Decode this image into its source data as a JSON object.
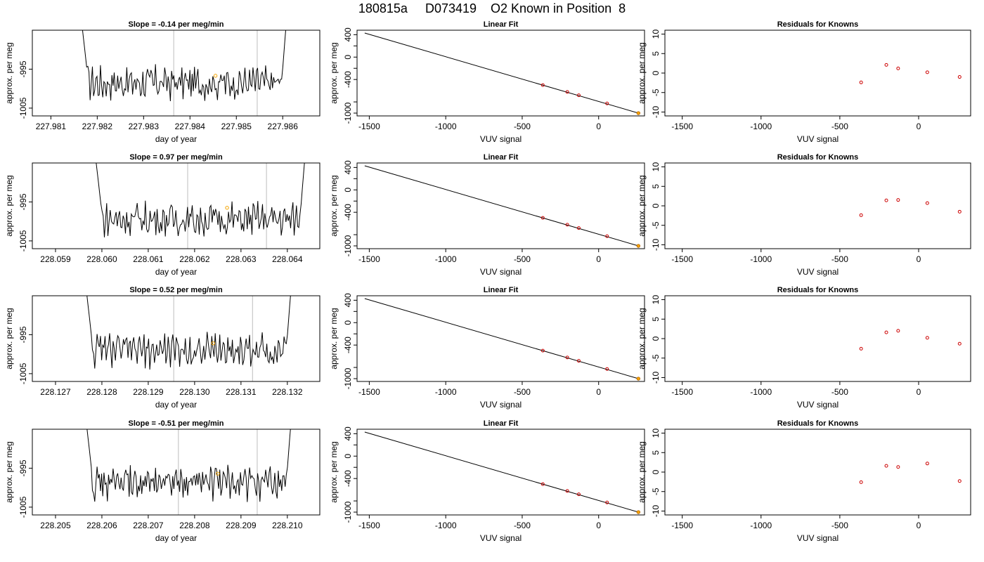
{
  "figure": {
    "title": "180815a     D073419    O2 Known in Position  8"
  },
  "chart_data": [
    {
      "type": "line",
      "panel": "timeseries",
      "row": 1,
      "title": "Slope =  -0.14  per meg/min",
      "xlabel": "day of year",
      "ylabel": "approx. per meg",
      "xlim": [
        227.9806,
        227.9868
      ],
      "ylim": [
        -1007,
        -985
      ],
      "xticks": [
        "227.981",
        "227.982",
        "227.983",
        "227.984",
        "227.985",
        "227.986"
      ],
      "xtick_values": [
        227.981,
        227.982,
        227.983,
        227.984,
        227.985,
        227.986
      ],
      "yticks": [
        "-1005",
        "-995"
      ],
      "ytick_values": [
        -1005,
        -995
      ],
      "x_start": 227.9815,
      "x_end": 227.9862,
      "baseline": -998.5,
      "vlines": [
        227.98365,
        227.98545
      ],
      "marker": {
        "x": 227.98455,
        "y": -996.7,
        "color": "#f4a300"
      },
      "trace_color": "#000000",
      "vline_color": "#c8c8c8"
    },
    {
      "type": "line",
      "panel": "linear-fit",
      "row": 1,
      "title": "Linear Fit",
      "xlabel": "VUV signal",
      "ylabel": "approx. per meg",
      "xlim": [
        -1580,
        300
      ],
      "ylim": [
        -1050,
        480
      ],
      "xticks": [
        "-1500",
        "-1000",
        "-500",
        "0"
      ],
      "xtick_values": [
        -1500,
        -1000,
        -500,
        0
      ],
      "yticks": [
        "400",
        "0",
        "-400",
        "-1000"
      ],
      "ytick_values": [
        400,
        0,
        -400,
        -1000
      ],
      "line": {
        "x": [
          -1530,
          260
        ],
        "y": [
          430,
          -1000
        ]
      },
      "points": {
        "x": [
          -365,
          -205,
          -130,
          55
        ],
        "y": [
          -500,
          -622,
          -682,
          -827
        ],
        "color": "#cc0000"
      },
      "highlight": {
        "x": [
          260
        ],
        "y": [
          -1000
        ],
        "color": "#f4a300"
      }
    },
    {
      "type": "scatter",
      "panel": "residuals",
      "row": 1,
      "title": "Residuals for Knowns",
      "xlabel": "VUV signal",
      "ylabel": "approx. per meg",
      "xlim": [
        -1610,
        330
      ],
      "ylim": [
        -11,
        11
      ],
      "xticks": [
        "-1500",
        "-1000",
        "-500",
        "0"
      ],
      "xtick_values": [
        -1500,
        -1000,
        -500,
        0
      ],
      "yticks": [
        "10",
        "5",
        "0",
        "-5",
        "-10"
      ],
      "ytick_values": [
        10,
        5,
        0,
        -5,
        -10
      ],
      "points": {
        "x": [
          -365,
          -205,
          -130,
          55,
          260
        ],
        "y": [
          -2.4,
          2.1,
          1.2,
          0.2,
          -1.0
        ],
        "color": "#cc0000"
      }
    },
    {
      "type": "line",
      "panel": "timeseries",
      "row": 2,
      "title": "Slope =  0.97  per meg/min",
      "xlabel": "day of year",
      "ylabel": "approx. per meg",
      "xlim": [
        228.0585,
        228.0647
      ],
      "ylim": [
        -1007,
        -985
      ],
      "xticks": [
        "228.059",
        "228.060",
        "228.061",
        "228.062",
        "228.063",
        "228.064"
      ],
      "xtick_values": [
        228.059,
        228.06,
        228.061,
        228.062,
        228.063,
        228.064
      ],
      "yticks": [
        "-1005",
        "-995"
      ],
      "ytick_values": [
        -1005,
        -995
      ],
      "x_start": 228.0597,
      "x_end": 228.0645,
      "baseline": -999.5,
      "vlines": [
        228.06185,
        228.06355
      ],
      "marker": {
        "x": 228.0627,
        "y": -996.5,
        "color": "#f4a300"
      },
      "trace_color": "#000000",
      "vline_color": "#c8c8c8"
    },
    {
      "type": "line",
      "panel": "linear-fit",
      "row": 2,
      "title": "Linear Fit",
      "xlabel": "VUV signal",
      "ylabel": "approx. per meg",
      "xlim": [
        -1580,
        300
      ],
      "ylim": [
        -1050,
        480
      ],
      "xticks": [
        "-1500",
        "-1000",
        "-500",
        "0"
      ],
      "xtick_values": [
        -1500,
        -1000,
        -500,
        0
      ],
      "yticks": [
        "400",
        "0",
        "-400",
        "-1000"
      ],
      "ytick_values": [
        400,
        0,
        -400,
        -1000
      ],
      "line": {
        "x": [
          -1530,
          260
        ],
        "y": [
          430,
          -1000
        ]
      },
      "points": {
        "x": [
          -365,
          -205,
          -130,
          55
        ],
        "y": [
          -500,
          -622,
          -682,
          -827
        ],
        "color": "#cc0000"
      },
      "highlight": {
        "x": [
          260
        ],
        "y": [
          -1000
        ],
        "color": "#f4a300"
      }
    },
    {
      "type": "scatter",
      "panel": "residuals",
      "row": 2,
      "title": "Residuals for Knowns",
      "xlabel": "VUV signal",
      "ylabel": "approx. per meg",
      "xlim": [
        -1610,
        330
      ],
      "ylim": [
        -11,
        11
      ],
      "xticks": [
        "-1500",
        "-1000",
        "-500",
        "0"
      ],
      "xtick_values": [
        -1500,
        -1000,
        -500,
        0
      ],
      "yticks": [
        "10",
        "5",
        "0",
        "-5",
        "-10"
      ],
      "ytick_values": [
        10,
        5,
        0,
        -5,
        -10
      ],
      "points": {
        "x": [
          -365,
          -205,
          -130,
          55,
          260
        ],
        "y": [
          -2.4,
          1.4,
          1.5,
          0.7,
          -1.5
        ],
        "color": "#cc0000"
      }
    },
    {
      "type": "line",
      "panel": "timeseries",
      "row": 3,
      "title": "Slope =  0.52  per meg/min",
      "xlabel": "day of year",
      "ylabel": "approx. per meg",
      "xlim": [
        228.1265,
        228.1327
      ],
      "ylim": [
        -1007,
        -985
      ],
      "xticks": [
        "228.127",
        "228.128",
        "228.129",
        "228.130",
        "228.131",
        "228.132"
      ],
      "xtick_values": [
        228.127,
        228.128,
        228.129,
        228.13,
        228.131,
        228.132
      ],
      "yticks": [
        "-1005",
        "-995"
      ],
      "ytick_values": [
        -1005,
        -995
      ],
      "x_start": 228.1275,
      "x_end": 228.1322,
      "baseline": -999,
      "vlines": [
        228.12955,
        228.13125
      ],
      "marker": {
        "x": 228.1304,
        "y": -997.2,
        "color": "#f4a300"
      },
      "trace_color": "#000000",
      "vline_color": "#c8c8c8"
    },
    {
      "type": "line",
      "panel": "linear-fit",
      "row": 3,
      "title": "Linear Fit",
      "xlabel": "VUV signal",
      "ylabel": "approx. per meg",
      "xlim": [
        -1580,
        300
      ],
      "ylim": [
        -1050,
        480
      ],
      "xticks": [
        "-1500",
        "-1000",
        "-500",
        "0"
      ],
      "xtick_values": [
        -1500,
        -1000,
        -500,
        0
      ],
      "yticks": [
        "400",
        "0",
        "-400",
        "-1000"
      ],
      "ytick_values": [
        400,
        0,
        -400,
        -1000
      ],
      "line": {
        "x": [
          -1530,
          260
        ],
        "y": [
          430,
          -1000
        ]
      },
      "points": {
        "x": [
          -365,
          -205,
          -130,
          55
        ],
        "y": [
          -500,
          -622,
          -682,
          -827
        ],
        "color": "#cc0000"
      },
      "highlight": {
        "x": [
          260
        ],
        "y": [
          -1000
        ],
        "color": "#f4a300"
      }
    },
    {
      "type": "scatter",
      "panel": "residuals",
      "row": 3,
      "title": "Residuals for Knowns",
      "xlabel": "VUV signal",
      "ylabel": "approx. per meg",
      "xlim": [
        -1610,
        330
      ],
      "ylim": [
        -11,
        11
      ],
      "xticks": [
        "-1500",
        "-1000",
        "-500",
        "0"
      ],
      "xtick_values": [
        -1500,
        -1000,
        -500,
        0
      ],
      "yticks": [
        "10",
        "5",
        "0",
        "-5",
        "-10"
      ],
      "ytick_values": [
        10,
        5,
        0,
        -5,
        -10
      ],
      "points": {
        "x": [
          -365,
          -205,
          -130,
          55,
          260
        ],
        "y": [
          -2.6,
          1.6,
          2.0,
          0.2,
          -1.3
        ],
        "color": "#cc0000"
      }
    },
    {
      "type": "line",
      "panel": "timeseries",
      "row": 4,
      "title": "Slope =  -0.51  per meg/min",
      "xlabel": "day of year",
      "ylabel": "approx. per meg",
      "xlim": [
        228.2045,
        228.2107
      ],
      "ylim": [
        -1007,
        -985
      ],
      "xticks": [
        "228.205",
        "228.206",
        "228.207",
        "228.208",
        "228.209",
        "228.210"
      ],
      "xtick_values": [
        228.205,
        228.206,
        228.207,
        228.208,
        228.209,
        228.21
      ],
      "yticks": [
        "-1005",
        "-995"
      ],
      "ytick_values": [
        -1005,
        -995
      ],
      "x_start": 228.2055,
      "x_end": 228.2102,
      "baseline": -998.8,
      "vlines": [
        228.20765,
        228.20935
      ],
      "marker": {
        "x": 228.2085,
        "y": -996.4,
        "color": "#f4a300"
      },
      "trace_color": "#000000",
      "vline_color": "#c8c8c8"
    },
    {
      "type": "line",
      "panel": "linear-fit",
      "row": 4,
      "title": "Linear Fit",
      "xlabel": "VUV signal",
      "ylabel": "approx. per meg",
      "xlim": [
        -1580,
        300
      ],
      "ylim": [
        -1050,
        480
      ],
      "xticks": [
        "-1500",
        "-1000",
        "-500",
        "0"
      ],
      "xtick_values": [
        -1500,
        -1000,
        -500,
        0
      ],
      "yticks": [
        "400",
        "0",
        "-400",
        "-1000"
      ],
      "ytick_values": [
        400,
        0,
        -400,
        -1000
      ],
      "line": {
        "x": [
          -1530,
          260
        ],
        "y": [
          430,
          -1000
        ]
      },
      "points": {
        "x": [
          -365,
          -205,
          -130,
          55
        ],
        "y": [
          -500,
          -622,
          -682,
          -827
        ],
        "color": "#cc0000"
      },
      "highlight": {
        "x": [
          260
        ],
        "y": [
          -1000
        ],
        "color": "#f4a300"
      }
    },
    {
      "type": "scatter",
      "panel": "residuals",
      "row": 4,
      "title": "Residuals for Knowns",
      "xlabel": "VUV signal",
      "ylabel": "approx. per meg",
      "xlim": [
        -1610,
        330
      ],
      "ylim": [
        -11,
        11
      ],
      "xticks": [
        "-1500",
        "-1000",
        "-500",
        "0"
      ],
      "xtick_values": [
        -1500,
        -1000,
        -500,
        0
      ],
      "yticks": [
        "10",
        "5",
        "0",
        "-5",
        "-10"
      ],
      "ytick_values": [
        10,
        5,
        0,
        -5,
        -10
      ],
      "points": {
        "x": [
          -365,
          -205,
          -130,
          55,
          260
        ],
        "y": [
          -2.6,
          1.6,
          1.3,
          2.2,
          -2.3
        ],
        "color": "#cc0000"
      }
    }
  ]
}
